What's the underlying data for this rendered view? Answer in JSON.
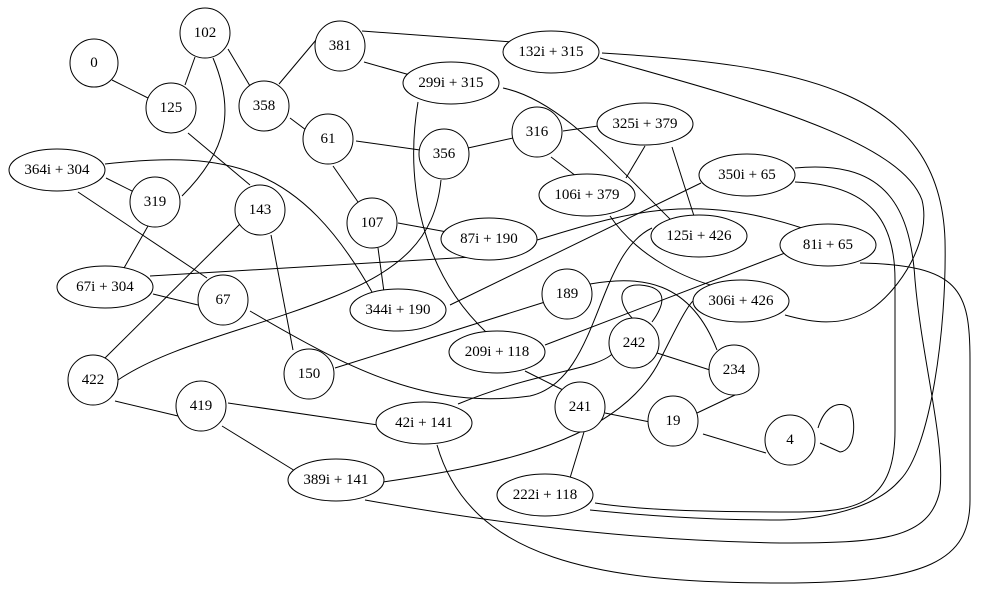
{
  "nodes": {
    "n0": "0",
    "n102": "102",
    "n125": "125",
    "n358": "358",
    "n381": "381",
    "n132i315": "132i + 315",
    "n299i315": "299i + 315",
    "n61": "61",
    "n356": "356",
    "n316": "316",
    "n325i379": "325i + 379",
    "n106i379": "106i + 379",
    "n350i65": "350i + 65",
    "n364i304": "364i + 304",
    "n319": "319",
    "n143": "143",
    "n107": "107",
    "n87i190": "87i + 190",
    "n125i426": "125i + 426",
    "n81i65": "81i + 65",
    "n67i304": "67i + 304",
    "n67": "67",
    "n344i190": "344i + 190",
    "n189": "189",
    "n306i426": "306i + 426",
    "n242": "242",
    "n209i118": "209i + 118",
    "n422": "422",
    "n150": "150",
    "n234": "234",
    "n419": "419",
    "n241": "241",
    "n42i141": "42i + 141",
    "n19": "19",
    "n4": "4",
    "n389i141": "389i + 141",
    "n222i118": "222i + 118"
  },
  "edges": [
    [
      "0",
      "125"
    ],
    [
      "102",
      "125"
    ],
    [
      "102",
      "358"
    ],
    [
      "102",
      "319"
    ],
    [
      "381",
      "358"
    ],
    [
      "381",
      "132i + 315"
    ],
    [
      "381",
      "299i + 315"
    ],
    [
      "358",
      "61"
    ],
    [
      "61",
      "356"
    ],
    [
      "61",
      "107"
    ],
    [
      "356",
      "316"
    ],
    [
      "356",
      "422"
    ],
    [
      "316",
      "325i + 379"
    ],
    [
      "316",
      "106i + 379"
    ],
    [
      "325i + 379",
      "106i + 379"
    ],
    [
      "325i + 379",
      "125i + 426"
    ],
    [
      "299i + 315",
      "125i + 426"
    ],
    [
      "299i + 315",
      "209i + 118"
    ],
    [
      "125",
      "143"
    ],
    [
      "364i + 304",
      "319"
    ],
    [
      "364i + 304",
      "67"
    ],
    [
      "364i + 304",
      "344i + 190"
    ],
    [
      "319",
      "67i + 304"
    ],
    [
      "143",
      "422"
    ],
    [
      "143",
      "150"
    ],
    [
      "107",
      "87i + 190"
    ],
    [
      "107",
      "344i + 190"
    ],
    [
      "87i + 190",
      "67i + 304"
    ],
    [
      "87i + 190",
      "81i + 65"
    ],
    [
      "350i + 65",
      "344i + 190"
    ],
    [
      "67i + 304",
      "67"
    ],
    [
      "67",
      "125i + 426"
    ],
    [
      "42i + 141",
      "242"
    ],
    [
      "189",
      "150"
    ],
    [
      "189",
      "234"
    ],
    [
      "242",
      "234"
    ],
    [
      "242",
      "242"
    ],
    [
      "234",
      "19"
    ],
    [
      "19",
      "241"
    ],
    [
      "19",
      "4"
    ],
    [
      "4",
      "4"
    ],
    [
      "241",
      "209i + 118"
    ],
    [
      "241",
      "222i + 118"
    ],
    [
      "422",
      "419"
    ],
    [
      "419",
      "42i + 141"
    ],
    [
      "419",
      "389i + 141"
    ],
    [
      "389i + 141",
      "306i + 426"
    ],
    [
      "81i + 65",
      "209i + 118"
    ],
    [
      "106i + 379",
      "306i + 426"
    ],
    [
      "132i + 315",
      "306i + 426"
    ],
    [
      "350i + 65",
      "222i + 118"
    ],
    [
      "350i + 65",
      "389i + 141"
    ],
    [
      "132i + 315",
      "222i + 118"
    ],
    [
      "81i + 65",
      "42i + 141"
    ]
  ]
}
